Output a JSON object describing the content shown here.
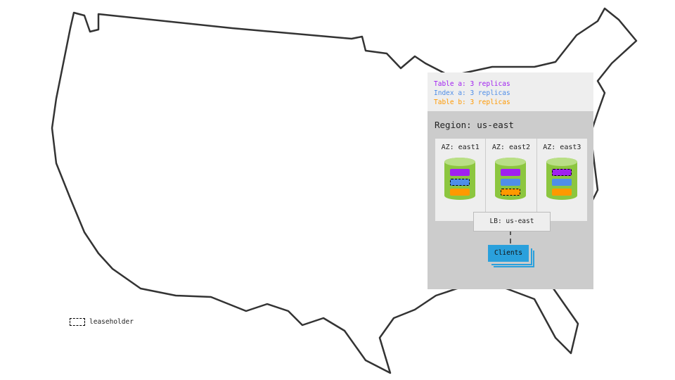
{
  "legend": [
    {
      "label": "Table a: 3 replicas",
      "color": "#a020f0"
    },
    {
      "label": "Index a: 3 replicas",
      "color": "#4f8ee8"
    },
    {
      "label": "Table b: 3 replicas",
      "color": "#ff9900"
    }
  ],
  "region": {
    "title": "Region: us-east"
  },
  "azs": [
    {
      "label": "AZ: east1",
      "leaseholder": "index a"
    },
    {
      "label": "AZ: east2",
      "leaseholder": "table b"
    },
    {
      "label": "AZ: east3",
      "leaseholder": "table a"
    }
  ],
  "lb": {
    "label": "LB: us-east"
  },
  "clients": {
    "label": "Clients"
  },
  "key": {
    "label": "leaseholder"
  }
}
